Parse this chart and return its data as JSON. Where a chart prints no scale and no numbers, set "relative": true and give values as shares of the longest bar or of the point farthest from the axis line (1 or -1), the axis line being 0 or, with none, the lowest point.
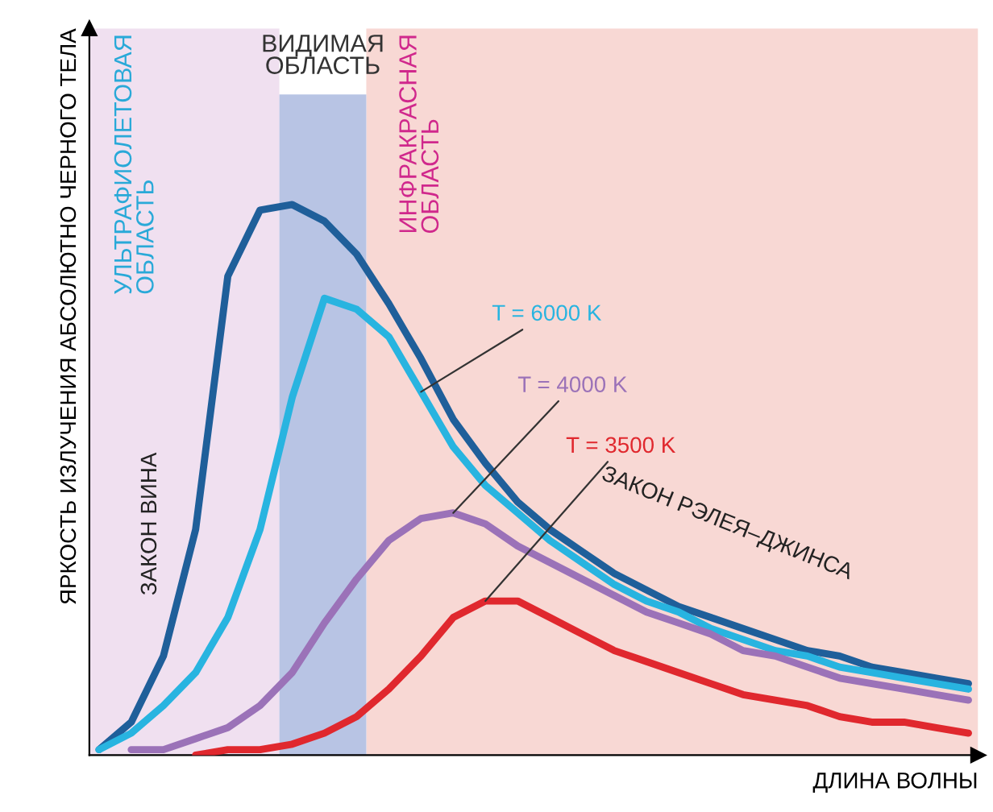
{
  "chart_data": {
    "type": "line",
    "relative": true,
    "xlabel": "ДЛИНА ВОЛНЫ",
    "ylabel": "ЯРКОСТЬ ИЗЛУЧЕНИЯ АБСОЛЮТНО ЧЕРНОГО ТЕЛА",
    "categories": [
      null,
      null,
      null,
      null,
      null,
      null,
      null,
      null,
      null,
      null,
      null,
      null,
      null,
      null,
      null,
      null,
      null,
      null,
      null,
      null,
      null,
      null,
      null,
      null,
      null,
      null,
      null,
      null
    ],
    "series": [
      {
        "color": "#1f5f9a",
        "values": [
          0.01,
          0.06,
          0.18,
          0.41,
          0.87,
          0.99,
          1.0,
          0.97,
          0.91,
          0.82,
          0.72,
          0.61,
          0.53,
          0.46,
          0.41,
          0.37,
          0.33,
          0.3,
          0.27,
          0.25,
          0.23,
          0.21,
          0.19,
          0.18,
          0.16,
          0.15,
          0.14,
          0.13
        ]
      },
      {
        "name": "T = 6000 K",
        "color": "#28b4e0",
        "values": [
          0.01,
          0.04,
          0.09,
          0.15,
          0.25,
          0.41,
          0.65,
          0.83,
          0.81,
          0.76,
          0.66,
          0.56,
          0.49,
          0.44,
          0.39,
          0.35,
          0.31,
          0.28,
          0.26,
          0.23,
          0.21,
          0.19,
          0.18,
          0.16,
          0.15,
          0.14,
          0.13,
          0.12
        ]
      },
      {
        "name": "T = 4000 K",
        "color": "#9b72b8",
        "values": [
          null,
          0.01,
          0.01,
          0.03,
          0.05,
          0.09,
          0.15,
          0.24,
          0.32,
          0.39,
          0.43,
          0.44,
          0.42,
          0.38,
          0.35,
          0.32,
          0.29,
          0.26,
          0.24,
          0.22,
          0.19,
          0.18,
          0.16,
          0.14,
          0.13,
          0.12,
          0.11,
          0.1
        ]
      },
      {
        "name": "T = 3500 K",
        "color": "#e0282e",
        "values": [
          null,
          null,
          null,
          0.0,
          0.01,
          0.01,
          0.02,
          0.04,
          0.07,
          0.12,
          0.18,
          0.25,
          0.28,
          0.28,
          0.25,
          0.22,
          0.19,
          0.17,
          0.15,
          0.13,
          0.11,
          0.1,
          0.09,
          0.07,
          0.06,
          0.06,
          0.05,
          0.04
        ]
      }
    ],
    "annotations": [
      "УЛЬТРАФИОЛЕТОВАЯ\nОБЛАСТЬ",
      "ВИДИМАЯ\nОБЛАСТЬ",
      "ИНФРАКРАСНАЯ\nОБЛАСТЬ",
      "ЗАКОН ВИНА",
      "ЗАКОН РЭЛЕЯ–ДЖИНСА"
    ],
    "grid": false
  }
}
